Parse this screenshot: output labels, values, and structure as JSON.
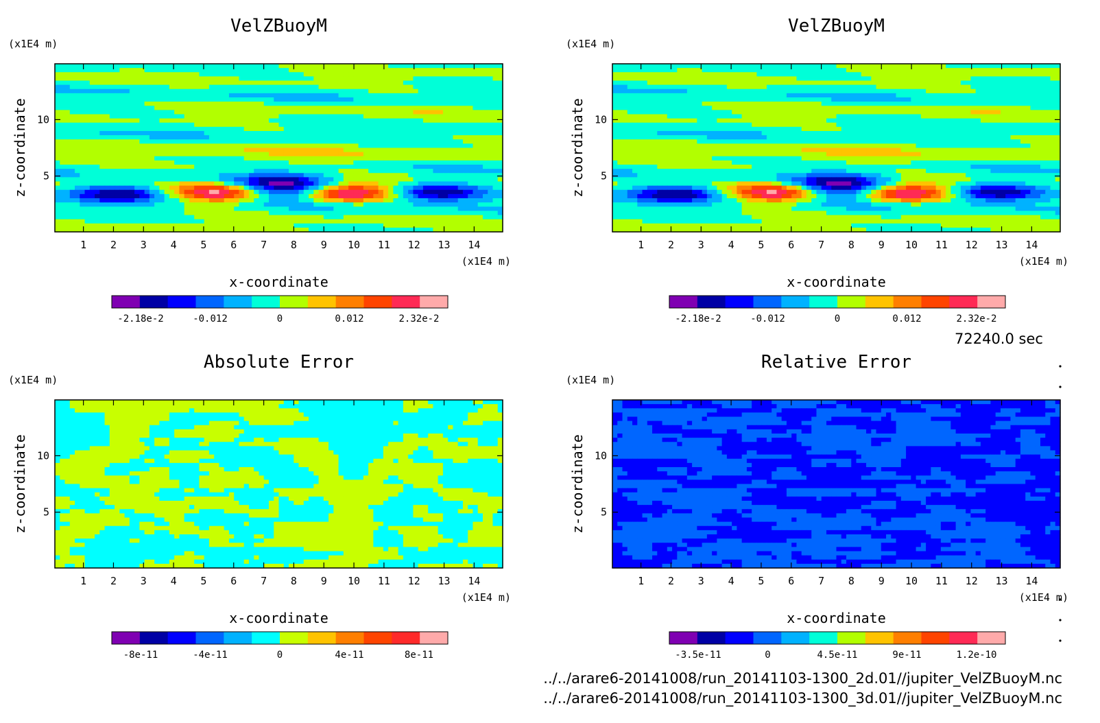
{
  "chart_data": [
    {
      "type": "heatmap",
      "title": "VelZBuoyM",
      "xlabel": "x-coordinate",
      "ylabel": "z-coordinate",
      "x_unit": "(x1E4 m)",
      "y_unit": "(x1E4 m)",
      "xlim": [
        0.05,
        14.95
      ],
      "ylim": [
        0.05,
        14.95
      ],
      "x_ticks": [
        1,
        2,
        3,
        4,
        5,
        6,
        7,
        8,
        9,
        10,
        11,
        12,
        13,
        14
      ],
      "y_ticks": [
        5,
        10
      ],
      "field": "buoy",
      "colorbar": {
        "colors": [
          "#7f00b2",
          "#0000a5",
          "#0000ff",
          "#0066ff",
          "#00b2ff",
          "#00ffd8",
          "#b2ff00",
          "#ffc300",
          "#ff7f00",
          "#ff4400",
          "#ff2a55",
          "#ffaaaa"
        ],
        "labels": [
          "-2.18e-2",
          "-0.012",
          "0",
          "0.012",
          "2.32e-2"
        ]
      }
    },
    {
      "type": "heatmap",
      "title": "VelZBuoyM",
      "xlabel": "x-coordinate",
      "ylabel": "z-coordinate",
      "x_unit": "(x1E4 m)",
      "y_unit": "(x1E4 m)",
      "xlim": [
        0.05,
        14.95
      ],
      "ylim": [
        0.05,
        14.95
      ],
      "x_ticks": [
        1,
        2,
        3,
        4,
        5,
        6,
        7,
        8,
        9,
        10,
        11,
        12,
        13,
        14
      ],
      "y_ticks": [
        5,
        10
      ],
      "field": "buoy",
      "colorbar": {
        "colors": [
          "#7f00b2",
          "#0000a5",
          "#0000ff",
          "#0066ff",
          "#00b2ff",
          "#00ffd8",
          "#b2ff00",
          "#ffc300",
          "#ff7f00",
          "#ff4400",
          "#ff2a55",
          "#ffaaaa"
        ],
        "labels": [
          "-2.18e-2",
          "-0.012",
          "0",
          "0.012",
          "2.32e-2"
        ]
      }
    },
    {
      "type": "heatmap",
      "title": "Absolute Error",
      "xlabel": "x-coordinate",
      "ylabel": "z-coordinate",
      "x_unit": "(x1E4 m)",
      "y_unit": "(x1E4 m)",
      "xlim": [
        0.05,
        14.95
      ],
      "ylim": [
        0.05,
        14.95
      ],
      "x_ticks": [
        1,
        2,
        3,
        4,
        5,
        6,
        7,
        8,
        9,
        10,
        11,
        12,
        13,
        14
      ],
      "y_ticks": [
        5,
        10
      ],
      "field": "abs",
      "colorbar": {
        "colors": [
          "#7f00b2",
          "#0000a5",
          "#0000ff",
          "#0066ff",
          "#00b2ff",
          "#00ffff",
          "#c8ff00",
          "#ffc300",
          "#ff7f00",
          "#ff4400",
          "#ff2a2a",
          "#ffaaaa"
        ],
        "labels": [
          "-8e-11",
          "-4e-11",
          "0",
          "4e-11",
          "8e-11"
        ]
      }
    },
    {
      "type": "heatmap",
      "title": "Relative Error",
      "xlabel": "x-coordinate",
      "ylabel": "z-coordinate",
      "x_unit": "(x1E4 m)",
      "y_unit": "(x1E4 m)",
      "xlim": [
        0.05,
        14.95
      ],
      "ylim": [
        0.05,
        14.95
      ],
      "x_ticks": [
        1,
        2,
        3,
        4,
        5,
        6,
        7,
        8,
        9,
        10,
        11,
        12,
        13,
        14
      ],
      "y_ticks": [
        5,
        10
      ],
      "field": "rel",
      "colorbar": {
        "colors": [
          "#7f00b2",
          "#0000a5",
          "#0000ff",
          "#0066ff",
          "#00b2ff",
          "#00ffd8",
          "#b2ff00",
          "#ffc300",
          "#ff7f00",
          "#ff4400",
          "#ff2a55",
          "#ffaaaa"
        ],
        "labels": [
          "-3.5e-11",
          "0",
          "4.5e-11",
          "9e-11",
          "1.2e-10"
        ]
      }
    }
  ],
  "footer": {
    "time": "72240.0 sec",
    "file1": "../../arare6-20141008/run_20141103-1300_2d.01//jupiter_VelZBuoyM.nc",
    "file2": "../../arare6-20141008/run_20141103-1300_3d.01//jupiter_VelZBuoyM.nc"
  }
}
